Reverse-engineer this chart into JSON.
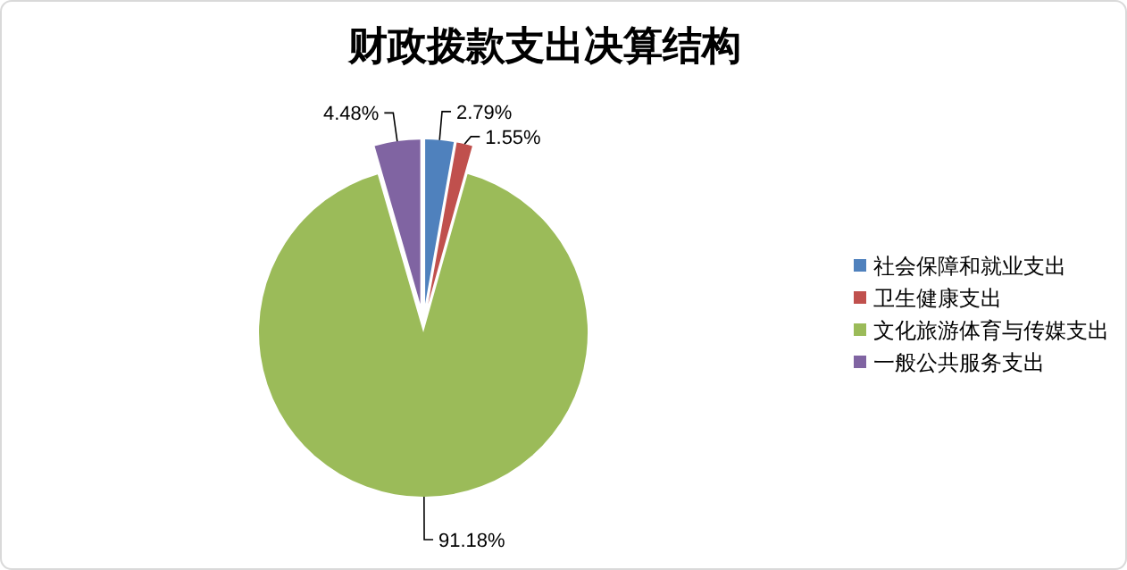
{
  "chart_data": {
    "type": "pie",
    "title": "财政拨款支出决算结构",
    "categories": [
      "社会保障和就业支出",
      "卫生健康支出",
      "文化旅游体育与传媒支出",
      "一般公共服务支出"
    ],
    "values": [
      2.79,
      1.55,
      91.18,
      4.48
    ],
    "colors": [
      "#4f81bd",
      "#c0504d",
      "#9bbb59",
      "#8064a2"
    ],
    "value_labels": [
      "2.79%",
      "1.55%",
      "91.18%",
      "4.48%"
    ],
    "legend": "right"
  }
}
